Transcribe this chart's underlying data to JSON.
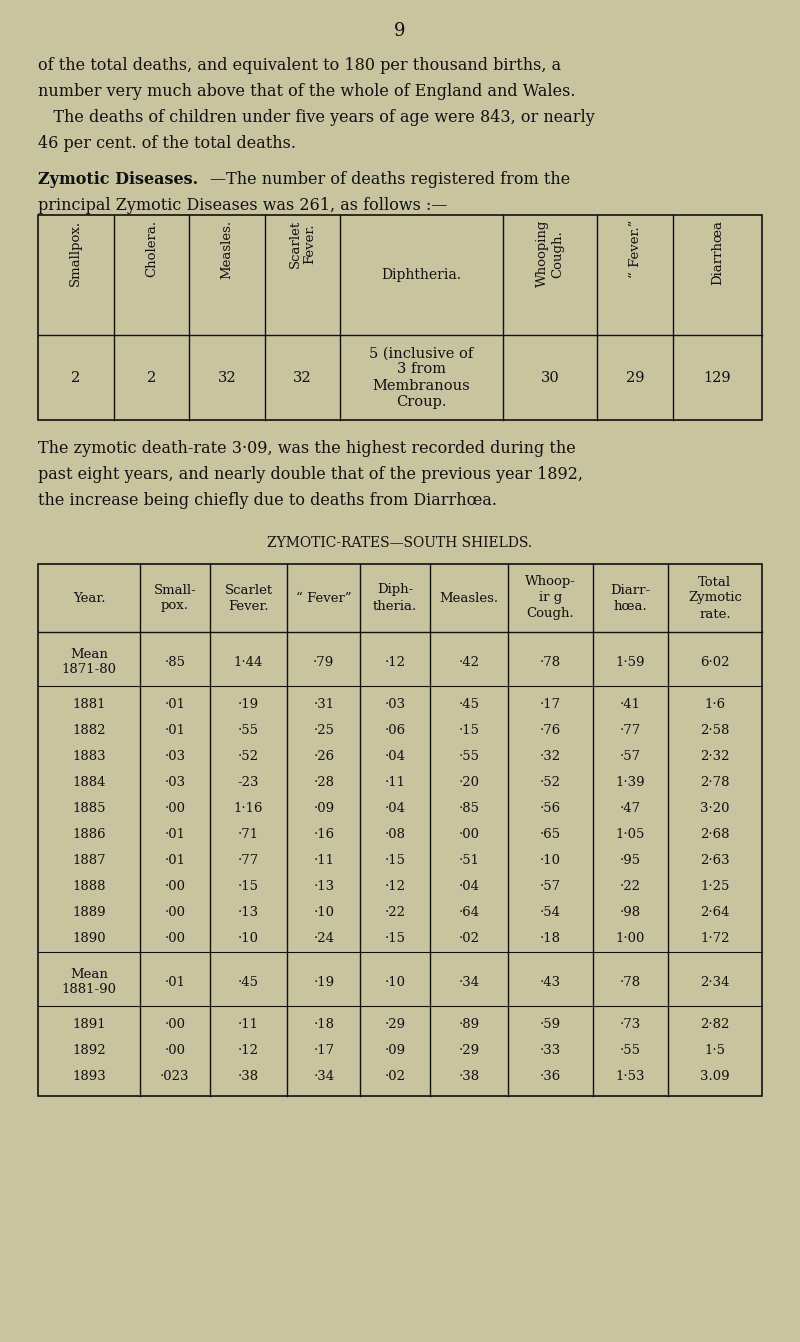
{
  "page_number": "9",
  "bg_color": "#c8c4a0",
  "text_color": "#111111",
  "lines1": [
    "of the total deaths, and equivalent to 180 per thousand births, a",
    "number very much above that of the whole of England and Wales.",
    "   The deaths of children under five years of age were 843, or nearly",
    "46 per cent. of the total deaths."
  ],
  "para2_bold": "Zymotic Diseases.",
  "para2_rest": "—The number of deaths registered from the",
  "para2_line2": "principal Zymotic Diseases was 261, as follows :—",
  "table1_headers": [
    "Smallpox.",
    "Cholera.",
    "Measles.",
    "Scarlet\nFever.",
    "Diphtheria.",
    "Whooping\nCough.",
    "“ Fever.”",
    "Diarrhœa"
  ],
  "table1_values": [
    "2",
    "2",
    "32",
    "32",
    "5 (inclusive of\n3 from\nMembranous\nCroup.",
    "30",
    "29",
    "129"
  ],
  "para3_lines": [
    "The zymotic death-rate 3·09, was the highest recorded during the",
    "past eight years, and nearly double that of the previous year 1892,",
    "the increase being chiefly due to deaths from Diarrhœa."
  ],
  "table2_title": "ZYMOTIC-RATES—SOUTH SHIELDS.",
  "table2_headers": [
    "Year.",
    "Small-\npox.",
    "Scarlet\nFever.",
    "“ Fever”",
    "Diph-\ntheria.",
    "Measles.",
    "Whoop-\nir g\nCough.",
    "Diarr-\nhœa.",
    "Total\nZymotic\nrate."
  ],
  "table2_rows": [
    [
      "Mean\n1871-80",
      "·85",
      "1·44",
      "·79",
      "·12",
      "·42",
      "·78",
      "1·59",
      "6·02"
    ],
    [
      "1881",
      "·01",
      "·19",
      "·31",
      "·03",
      "·45",
      "·17",
      "·41",
      "1·6"
    ],
    [
      "1882",
      "·01",
      "·55",
      "·25",
      "·06",
      "·15",
      "·76",
      "·77",
      "2·58"
    ],
    [
      "1883",
      "·03",
      "·52",
      "·26",
      "·04",
      "·55",
      "·32",
      "·57",
      "2·32"
    ],
    [
      "1884",
      "·03",
      "-23",
      "·28",
      "·11",
      "·20",
      "·52",
      "1·39",
      "2·78"
    ],
    [
      "1885",
      "·00",
      "1·16",
      "·09",
      "·04",
      "·85",
      "·56",
      "·47",
      "3·20"
    ],
    [
      "1886",
      "·01",
      "·71",
      "·16",
      "·08",
      "·00",
      "·65",
      "1·05",
      "2·68"
    ],
    [
      "1887",
      "·01",
      "·77",
      "·11",
      "·15",
      "·51",
      "·10",
      "·95",
      "2·63"
    ],
    [
      "1888",
      "·00",
      "·15",
      "·13",
      "·12",
      "·04",
      "·57",
      "·22",
      "1·25"
    ],
    [
      "1889",
      "·00",
      "·13",
      "·10",
      "·22",
      "·64",
      "·54",
      "·98",
      "2·64"
    ],
    [
      "1890",
      "·00",
      "·10",
      "·24",
      "·15",
      "·02",
      "·18",
      "1·00",
      "1·72"
    ],
    [
      "Mean\n1881-90",
      "·01",
      "·45",
      "·19",
      "·10",
      "·34",
      "·43",
      "·78",
      "2·34"
    ],
    [
      "1891",
      "·00",
      "·11",
      "·18",
      "·29",
      "·89",
      "·59",
      "·73",
      "2·82"
    ],
    [
      "1892",
      "·00",
      "·12",
      "·17",
      "·09",
      "·29",
      "·33",
      "·55",
      "1·5"
    ],
    [
      "1893",
      "·023",
      "·38",
      "·34",
      "·02",
      "·38",
      "·36",
      "1·53",
      "3.09"
    ]
  ]
}
